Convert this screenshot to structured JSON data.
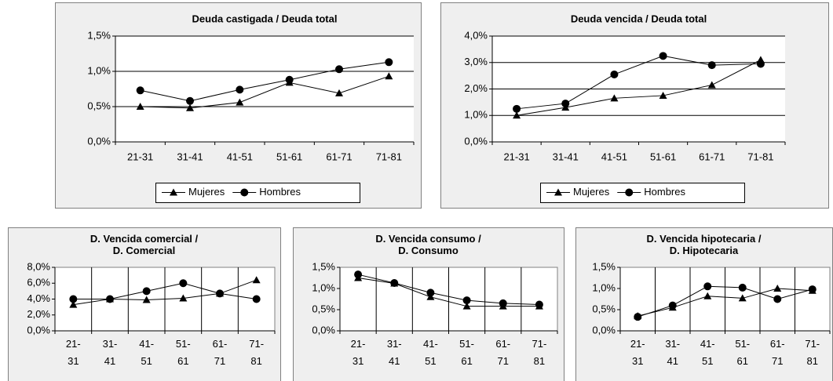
{
  "chart_data": [
    {
      "type": "line",
      "title": "Deuda castigada / Deuda total",
      "categories": [
        "21-31",
        "31-41",
        "41-51",
        "51-61",
        "61-71",
        "71-81"
      ],
      "series": [
        {
          "name": "Mujeres",
          "color": "#000000",
          "marker": "triangle",
          "values": [
            0.5,
            0.48,
            0.56,
            0.84,
            0.69,
            0.93
          ]
        },
        {
          "name": "Hombres",
          "color": "#000000",
          "marker": "circle",
          "values": [
            0.73,
            0.58,
            0.74,
            0.88,
            1.03,
            1.13
          ]
        }
      ],
      "ylim": [
        0,
        1.5
      ],
      "yticks": [
        {
          "value": 0,
          "label": "0,0%"
        },
        {
          "value": 0.5,
          "label": "0,5%"
        },
        {
          "value": 1,
          "label": "1,0%"
        },
        {
          "value": 1.5,
          "label": "1,5%"
        }
      ],
      "grid": "y",
      "legend": "bottom"
    },
    {
      "type": "line",
      "title": "Deuda vencida / Deuda total",
      "categories": [
        "21-31",
        "31-41",
        "41-51",
        "51-61",
        "61-71",
        "71-81"
      ],
      "series": [
        {
          "name": "Mujeres",
          "color": "#000000",
          "marker": "triangle",
          "values": [
            1.0,
            1.3,
            1.65,
            1.75,
            2.15,
            3.1
          ]
        },
        {
          "name": "Hombres",
          "color": "#000000",
          "marker": "circle",
          "values": [
            1.25,
            1.45,
            2.55,
            3.25,
            2.9,
            2.95
          ]
        }
      ],
      "ylim": [
        0,
        4
      ],
      "yticks": [
        {
          "value": 0,
          "label": "0,0%"
        },
        {
          "value": 1,
          "label": "1,0%"
        },
        {
          "value": 2,
          "label": "2,0%"
        },
        {
          "value": 3,
          "label": "3,0%"
        },
        {
          "value": 4,
          "label": "4,0%"
        }
      ],
      "grid": "y",
      "legend": "bottom"
    },
    {
      "type": "line",
      "title": "D. Vencida comercial /\nD. Comercial",
      "categories": [
        "21-31",
        "31-41",
        "41-51",
        "51-61",
        "61-71",
        "71-81"
      ],
      "series": [
        {
          "name": "Mujeres",
          "color": "#000000",
          "marker": "triangle",
          "values": [
            3.3,
            4.0,
            3.9,
            4.1,
            4.7,
            6.4
          ]
        },
        {
          "name": "Hombres",
          "color": "#000000",
          "marker": "circle",
          "values": [
            4.0,
            4.0,
            5.0,
            6.0,
            4.7,
            4.0
          ]
        }
      ],
      "ylim": [
        0,
        8
      ],
      "yticks": [
        {
          "value": 0,
          "label": "0,0%"
        },
        {
          "value": 2,
          "label": "2,0%"
        },
        {
          "value": 4,
          "label": "4,0%"
        },
        {
          "value": 6,
          "label": "6,0%"
        },
        {
          "value": 8,
          "label": "8,0%"
        }
      ],
      "grid": "x"
    },
    {
      "type": "line",
      "title": "D. Vencida consumo /\nD. Consumo",
      "categories": [
        "21-31",
        "31-41",
        "41-51",
        "51-61",
        "61-71",
        "71-81"
      ],
      "series": [
        {
          "name": "Mujeres",
          "color": "#000000",
          "marker": "triangle",
          "values": [
            1.25,
            1.12,
            0.8,
            0.58,
            0.58,
            0.58
          ]
        },
        {
          "name": "Hombres",
          "color": "#000000",
          "marker": "circle",
          "values": [
            1.33,
            1.13,
            0.9,
            0.72,
            0.65,
            0.62
          ]
        }
      ],
      "ylim": [
        0,
        1.5
      ],
      "yticks": [
        {
          "value": 0,
          "label": "0,0%"
        },
        {
          "value": 0.5,
          "label": "0,5%"
        },
        {
          "value": 1,
          "label": "1,0%"
        },
        {
          "value": 1.5,
          "label": "1,5%"
        }
      ],
      "grid": "x"
    },
    {
      "type": "line",
      "title": "D. Vencida hipotecaria /\nD. Hipotecaria",
      "categories": [
        "21-31",
        "31-41",
        "41-51",
        "51-61",
        "61-71",
        "71-81"
      ],
      "series": [
        {
          "name": "Mujeres",
          "color": "#000000",
          "marker": "triangle",
          "values": [
            0.35,
            0.55,
            0.82,
            0.77,
            1.0,
            0.95
          ]
        },
        {
          "name": "Hombres",
          "color": "#000000",
          "marker": "circle",
          "values": [
            0.33,
            0.6,
            1.05,
            1.02,
            0.75,
            0.98
          ]
        }
      ],
      "ylim": [
        0,
        1.5
      ],
      "yticks": [
        {
          "value": 0,
          "label": "0,0%"
        },
        {
          "value": 0.5,
          "label": "0,5%"
        },
        {
          "value": 1,
          "label": "1,0%"
        },
        {
          "value": 1.5,
          "label": "1,5%"
        }
      ],
      "grid": "x"
    }
  ]
}
